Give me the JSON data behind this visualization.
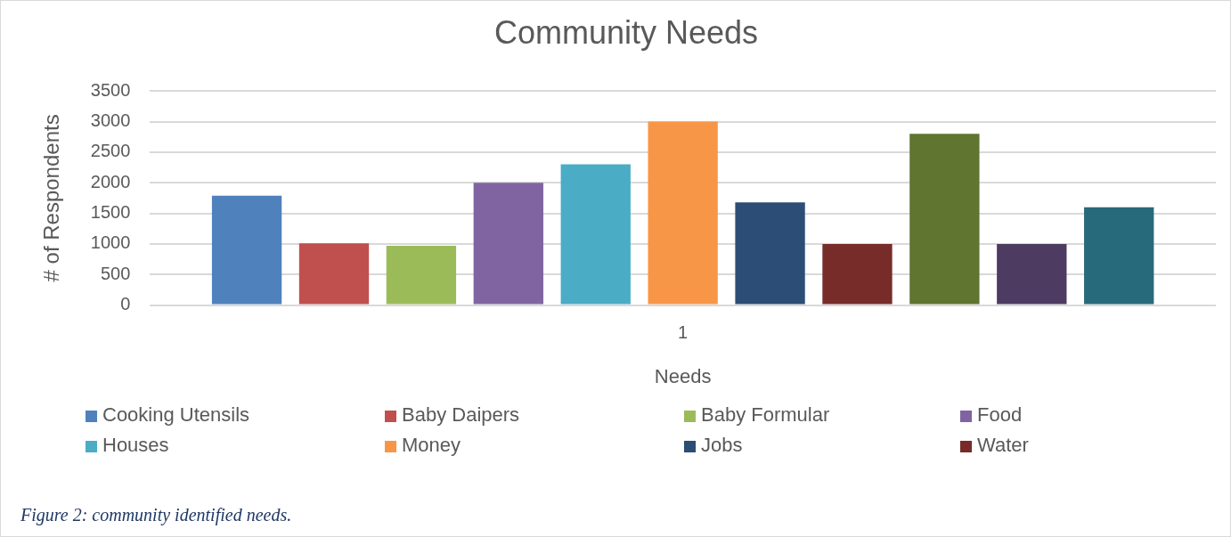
{
  "chart_data": {
    "type": "bar",
    "title": "Community Needs",
    "xlabel": "Needs",
    "ylabel": "# of Respondents",
    "categories": [
      "1"
    ],
    "series": [
      {
        "name": "Cooking Utensils",
        "color": "#4f81bd",
        "values": [
          1790
        ]
      },
      {
        "name": "Baby Daipers",
        "color": "#c0504d",
        "values": [
          1010
        ]
      },
      {
        "name": "Baby Formular",
        "color": "#9bbb59",
        "values": [
          970
        ]
      },
      {
        "name": "Food",
        "color": "#8064a2",
        "values": [
          2000
        ]
      },
      {
        "name": "Houses",
        "color": "#4bacc6",
        "values": [
          2300
        ]
      },
      {
        "name": "Money",
        "color": "#f79646",
        "values": [
          3000
        ]
      },
      {
        "name": "Jobs",
        "color": "#2c4d75",
        "values": [
          1680
        ]
      },
      {
        "name": "Water",
        "color": "#772c2a",
        "values": [
          1000
        ]
      },
      {
        "color": "#5f7530",
        "values": [
          2800
        ]
      },
      {
        "color": "#4d3b62",
        "values": [
          1000
        ]
      },
      {
        "color": "#276a7c",
        "values": [
          1600
        ]
      }
    ],
    "ylim": [
      0,
      3500
    ],
    "yticks": [
      0,
      500,
      1000,
      1500,
      2000,
      2500,
      3000,
      3500
    ],
    "grid": "y",
    "legend": "bottom",
    "annotations": [
      "Figure 2: community identified needs."
    ]
  }
}
